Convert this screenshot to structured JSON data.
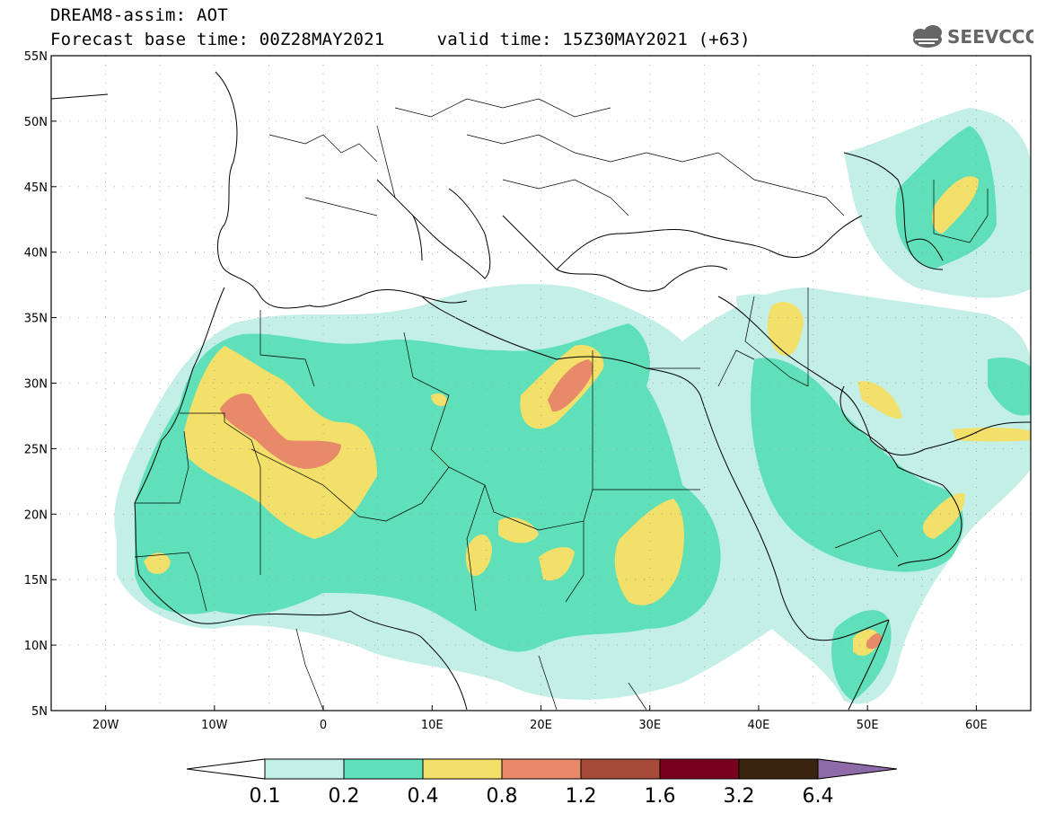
{
  "header": {
    "line1": "DREAM8-assim: AOT",
    "line2": "Forecast base time: 00Z28MAY2021     valid time: 15Z30MAY2021 (+63)"
  },
  "logo": {
    "text": "SEEVCCC",
    "icon": "cloud-icon"
  },
  "map": {
    "lon_range": [
      -25,
      65
    ],
    "lat_range": [
      5,
      55
    ],
    "lat_ticks": [
      "5N",
      "10N",
      "15N",
      "20N",
      "25N",
      "30N",
      "35N",
      "40N",
      "45N",
      "50N",
      "55N"
    ],
    "lon_ticks": [
      "20W",
      "10W",
      "0",
      "10E",
      "20E",
      "30E",
      "40E",
      "50E",
      "60E"
    ],
    "grid": "dotted"
  },
  "colorbar": {
    "labels": [
      "0.1",
      "0.2",
      "0.4",
      "0.8",
      "1.2",
      "1.6",
      "3.2",
      "6.4"
    ],
    "colors": [
      "#ffffff",
      "#c3efe6",
      "#5fe0b8",
      "#f2e06a",
      "#e8896a",
      "#a64a3a",
      "#7a0020",
      "#3a2410",
      "#8e6aa6"
    ]
  },
  "legend_colors": {
    "c1": "#c3efe6",
    "c2": "#5fe0b8",
    "c3": "#f2e06a",
    "c4": "#e8896a"
  }
}
